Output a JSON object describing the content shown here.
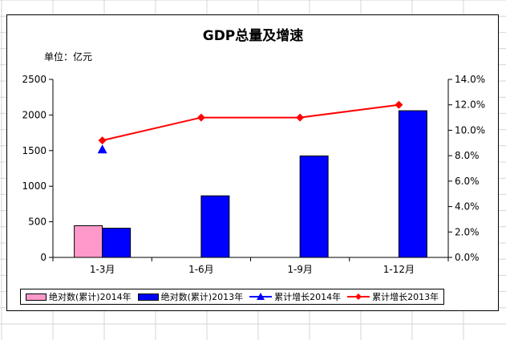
{
  "chart_data": {
    "type": "bar",
    "title": "GDP总量及增速",
    "unit_label": "单位：亿元",
    "categories": [
      "1-3月",
      "1-6月",
      "1-9月",
      "1-12月"
    ],
    "y_left": {
      "lim": [
        0,
        2500
      ],
      "ticks": [
        "0",
        "500",
        "1000",
        "1500",
        "2000",
        "2500"
      ]
    },
    "y_right": {
      "lim": [
        0,
        14
      ],
      "ticks": [
        "0.0%",
        "2.0%",
        "4.0%",
        "6.0%",
        "8.0%",
        "10.0%",
        "12.0%",
        "14.0%"
      ]
    },
    "series": [
      {
        "name": "绝对数(累计)2014年",
        "kind": "bar",
        "axis": "left",
        "color": "#ff99cc",
        "values": [
          445,
          null,
          null,
          null
        ]
      },
      {
        "name": "绝对数(累计)2013年",
        "kind": "bar",
        "axis": "left",
        "color": "#0000ff",
        "values": [
          410,
          865,
          1425,
          2060
        ]
      },
      {
        "name": "累计增长2014年",
        "kind": "marker",
        "marker": "triangle",
        "axis": "right",
        "color": "#0000ff",
        "values": [
          8.5,
          null,
          null,
          null
        ]
      },
      {
        "name": "累计增长2013年",
        "kind": "line",
        "marker": "diamond",
        "axis": "right",
        "color": "#ff0000",
        "values": [
          9.2,
          11.0,
          11.0,
          12.0
        ]
      }
    ],
    "grid": false,
    "legend_position": "bottom"
  }
}
